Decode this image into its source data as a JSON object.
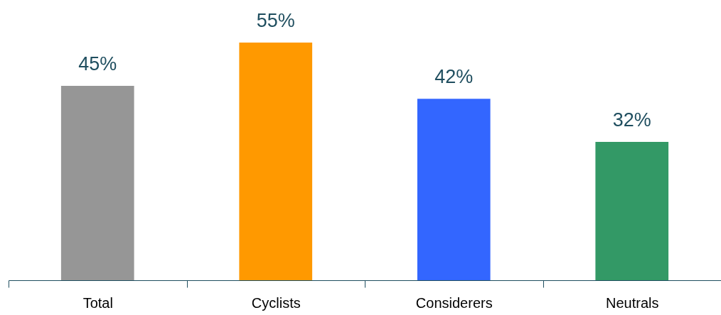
{
  "chart_data": {
    "type": "bar",
    "categories": [
      "Total",
      "Cyclists",
      "Considerers",
      "Neutrals"
    ],
    "values": [
      45,
      55,
      42,
      32
    ],
    "colors": [
      "#969696",
      "#ff9900",
      "#3366ff",
      "#339966"
    ],
    "value_labels": [
      "45%",
      "55%",
      "42%",
      "32%"
    ],
    "grid": false,
    "legend": false
  }
}
